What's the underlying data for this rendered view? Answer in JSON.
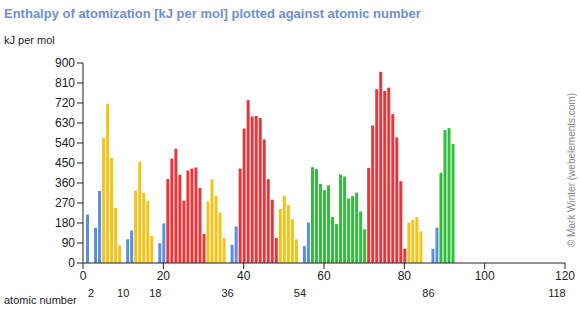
{
  "chart_data": {
    "type": "bar",
    "title": "Enthalpy of atomization [kJ per mol] plotted against atomic number",
    "y_label": "kJ per mol",
    "x2_label": "atomic number",
    "annotations": [
      "© Mark Winter (webelements.com)"
    ],
    "x": [
      1,
      2,
      3,
      4,
      5,
      6,
      7,
      8,
      9,
      10,
      11,
      12,
      13,
      14,
      15,
      16,
      17,
      18,
      19,
      20,
      21,
      22,
      23,
      24,
      25,
      26,
      27,
      28,
      29,
      30,
      31,
      32,
      33,
      34,
      35,
      36,
      37,
      38,
      39,
      40,
      41,
      42,
      43,
      44,
      45,
      46,
      47,
      48,
      49,
      50,
      51,
      52,
      53,
      54,
      55,
      56,
      57,
      58,
      59,
      60,
      61,
      62,
      63,
      64,
      65,
      66,
      67,
      68,
      69,
      70,
      71,
      72,
      73,
      74,
      75,
      76,
      77,
      78,
      79,
      80,
      81,
      82,
      83,
      84,
      85,
      86,
      87,
      88,
      89,
      90,
      91,
      92,
      93,
      94,
      95,
      96,
      97,
      98,
      99,
      100,
      101,
      102,
      103,
      104,
      105,
      106,
      107,
      108,
      109,
      110,
      111,
      112,
      113,
      114,
      115,
      116,
      117,
      118
    ],
    "values": [
      218,
      0,
      159,
      324,
      563,
      717,
      473,
      249,
      79,
      0,
      107,
      146,
      326,
      456,
      315,
      279,
      122,
      0,
      89,
      178,
      378,
      470,
      514,
      397,
      281,
      416,
      425,
      430,
      338,
      131,
      277,
      377,
      302,
      227,
      112,
      0,
      81,
      164,
      425,
      605,
      733,
      659,
      661,
      652,
      556,
      377,
      285,
      112,
      243,
      302,
      262,
      197,
      107,
      0,
      76,
      182,
      431,
      423,
      356,
      328,
      350,
      207,
      175,
      398,
      389,
      290,
      301,
      317,
      232,
      152,
      428,
      619,
      782,
      860,
      774,
      789,
      670,
      565,
      368,
      64,
      182,
      195,
      207,
      142,
      null,
      0,
      64,
      159,
      406,
      598,
      607,
      536,
      null,
      null,
      null,
      null,
      null,
      null,
      null,
      null,
      null,
      null,
      null,
      null,
      null,
      null,
      null,
      null,
      null,
      null,
      null,
      null,
      null,
      null,
      null,
      null,
      null,
      null
    ],
    "colors": [
      "#5b8fd9",
      "#5b8fd9",
      "#5b8fd9",
      "#5b8fd9",
      "#f2c418",
      "#f2c418",
      "#f2c418",
      "#f2c418",
      "#f2c418",
      "#f2c418",
      "#5b8fd9",
      "#5b8fd9",
      "#f2c418",
      "#f2c418",
      "#f2c418",
      "#f2c418",
      "#f2c418",
      "#f2c418",
      "#5b8fd9",
      "#5b8fd9",
      "#e8363a",
      "#e8363a",
      "#e8363a",
      "#e8363a",
      "#e8363a",
      "#e8363a",
      "#e8363a",
      "#e8363a",
      "#e8363a",
      "#e8363a",
      "#f2c418",
      "#f2c418",
      "#f2c418",
      "#f2c418",
      "#f2c418",
      "#f2c418",
      "#5b8fd9",
      "#5b8fd9",
      "#e8363a",
      "#e8363a",
      "#e8363a",
      "#e8363a",
      "#e8363a",
      "#e8363a",
      "#e8363a",
      "#e8363a",
      "#e8363a",
      "#e8363a",
      "#f2c418",
      "#f2c418",
      "#f2c418",
      "#f2c418",
      "#f2c418",
      "#f2c418",
      "#5b8fd9",
      "#5b8fd9",
      "#2fbf3a",
      "#2fbf3a",
      "#2fbf3a",
      "#2fbf3a",
      "#2fbf3a",
      "#2fbf3a",
      "#2fbf3a",
      "#2fbf3a",
      "#2fbf3a",
      "#2fbf3a",
      "#2fbf3a",
      "#2fbf3a",
      "#2fbf3a",
      "#2fbf3a",
      "#e8363a",
      "#e8363a",
      "#e8363a",
      "#e8363a",
      "#e8363a",
      "#e8363a",
      "#e8363a",
      "#e8363a",
      "#e8363a",
      "#e8363a",
      "#f2c418",
      "#f2c418",
      "#f2c418",
      "#f2c418",
      "#f2c418",
      "#f2c418",
      "#5b8fd9",
      "#5b8fd9",
      "#2fbf3a",
      "#2fbf3a",
      "#2fbf3a",
      "#2fbf3a",
      "#2fbf3a",
      "#2fbf3a",
      "#2fbf3a",
      "#2fbf3a",
      "#2fbf3a",
      "#2fbf3a",
      "#2fbf3a",
      "#2fbf3a",
      "#2fbf3a",
      "#2fbf3a",
      "#2fbf3a",
      "#2fbf3a",
      "#e8363a",
      "#e8363a",
      "#e8363a",
      "#e8363a",
      "#e8363a",
      "#e8363a",
      "#e8363a",
      "#e8363a",
      "#e8363a",
      "#e8363a",
      "#f2c418",
      "#f2c418",
      "#f2c418",
      "#f2c418",
      "#f2c418",
      "#f2c418"
    ],
    "xlim": [
      0,
      120
    ],
    "xticks": [
      0,
      20,
      40,
      60,
      80,
      100,
      120
    ],
    "x2ticks": [
      2,
      10,
      18,
      36,
      54,
      86,
      118
    ],
    "ylim": [
      0,
      900
    ],
    "yticks": [
      0,
      90,
      180,
      270,
      360,
      450,
      540,
      630,
      720,
      810,
      900
    ],
    "grid": false
  }
}
